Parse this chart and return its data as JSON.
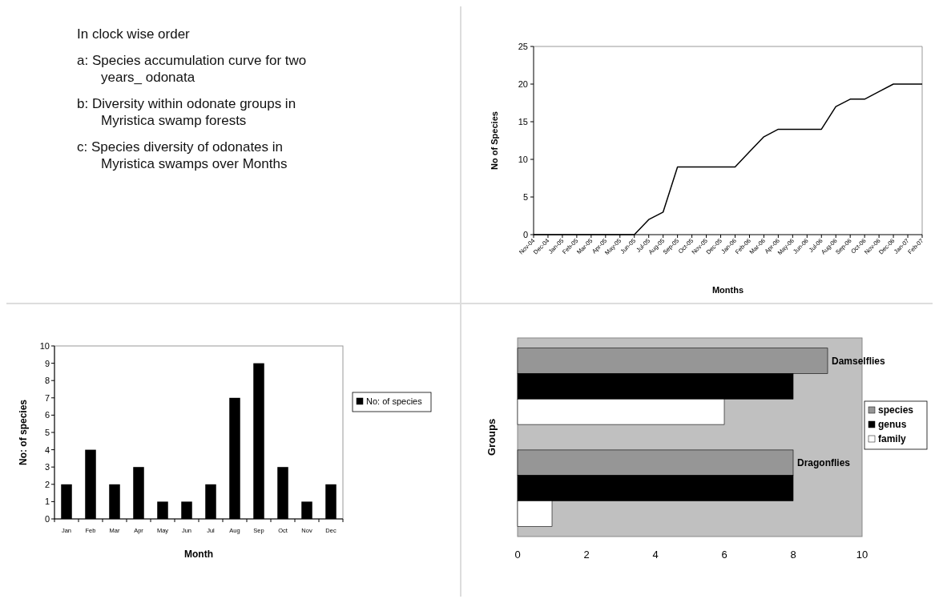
{
  "chart_data": [
    {
      "type": "other",
      "annotations": [
        "In clock wise order",
        "a: Species accumulation curve for two years_ odonata",
        "b: Diversity within odonate groups in Myristica swamp forests",
        "c: Species diversity of odonates in Myristica swamps over Months"
      ]
    },
    {
      "type": "line",
      "xlabel": "Months",
      "ylabel": "No of Species",
      "categories": [
        "Nov-04",
        "Dec-04",
        "Jan-05",
        "Feb-05",
        "Mar-05",
        "Apr-05",
        "May-05",
        "Jun-05",
        "Jul-05",
        "Aug-05",
        "Sep-05",
        "Oct-05",
        "Nov-05",
        "Dec-05",
        "Jan-06",
        "Feb-06",
        "Mar-06",
        "Apr-06",
        "May-06",
        "Jun-06",
        "Jul-06",
        "Aug-06",
        "Sep-06",
        "Oct-06",
        "Nov-06",
        "Dec-06",
        "Jan-07",
        "Feb-07"
      ],
      "series": [
        {
          "color": "#000000",
          "values": [
            0,
            0,
            0,
            0,
            0,
            0,
            0,
            0,
            2,
            3,
            9,
            9,
            9,
            9,
            9,
            11,
            13,
            14,
            14,
            14,
            14,
            17,
            18,
            18,
            19,
            20,
            20,
            20
          ]
        }
      ],
      "ylim": [
        0,
        25
      ],
      "yticks": [
        0,
        5,
        10,
        15,
        20,
        25
      ],
      "grid": false,
      "legend": false
    },
    {
      "type": "bar",
      "xlabel": "Month",
      "ylabel": "No: of species",
      "categories": [
        "Jan",
        "Feb",
        "Mar",
        "Apr",
        "May",
        "Jun",
        "Jul",
        "Aug",
        "Sep",
        "Oct",
        "Nov",
        "Dec"
      ],
      "series": [
        {
          "name": "No: of species",
          "color": "#000000",
          "values": [
            2,
            4,
            2,
            3,
            1,
            1,
            2,
            7,
            9,
            3,
            1,
            2
          ]
        }
      ],
      "ylim": [
        0,
        10
      ],
      "yticks": [
        0,
        1,
        2,
        3,
        4,
        5,
        6,
        7,
        8,
        9,
        10
      ],
      "grid": false,
      "legend": "right"
    },
    {
      "type": "bar",
      "orientation": "horizontal",
      "ylabel": "Groups",
      "categories": [
        null,
        null
      ],
      "annotations": [
        "Damselflies",
        "Dragonflies"
      ],
      "series": [
        {
          "name": "species",
          "color": "#969696",
          "values": [
            9,
            8
          ]
        },
        {
          "name": "genus",
          "color": "#000000",
          "values": [
            8,
            8
          ]
        },
        {
          "name": "family",
          "color": "#ffffff",
          "values": [
            6,
            1
          ]
        }
      ],
      "xlim": [
        0,
        10
      ],
      "xticks": [
        0,
        2,
        4,
        6,
        8,
        10
      ],
      "grid": false,
      "legend": "right"
    }
  ]
}
